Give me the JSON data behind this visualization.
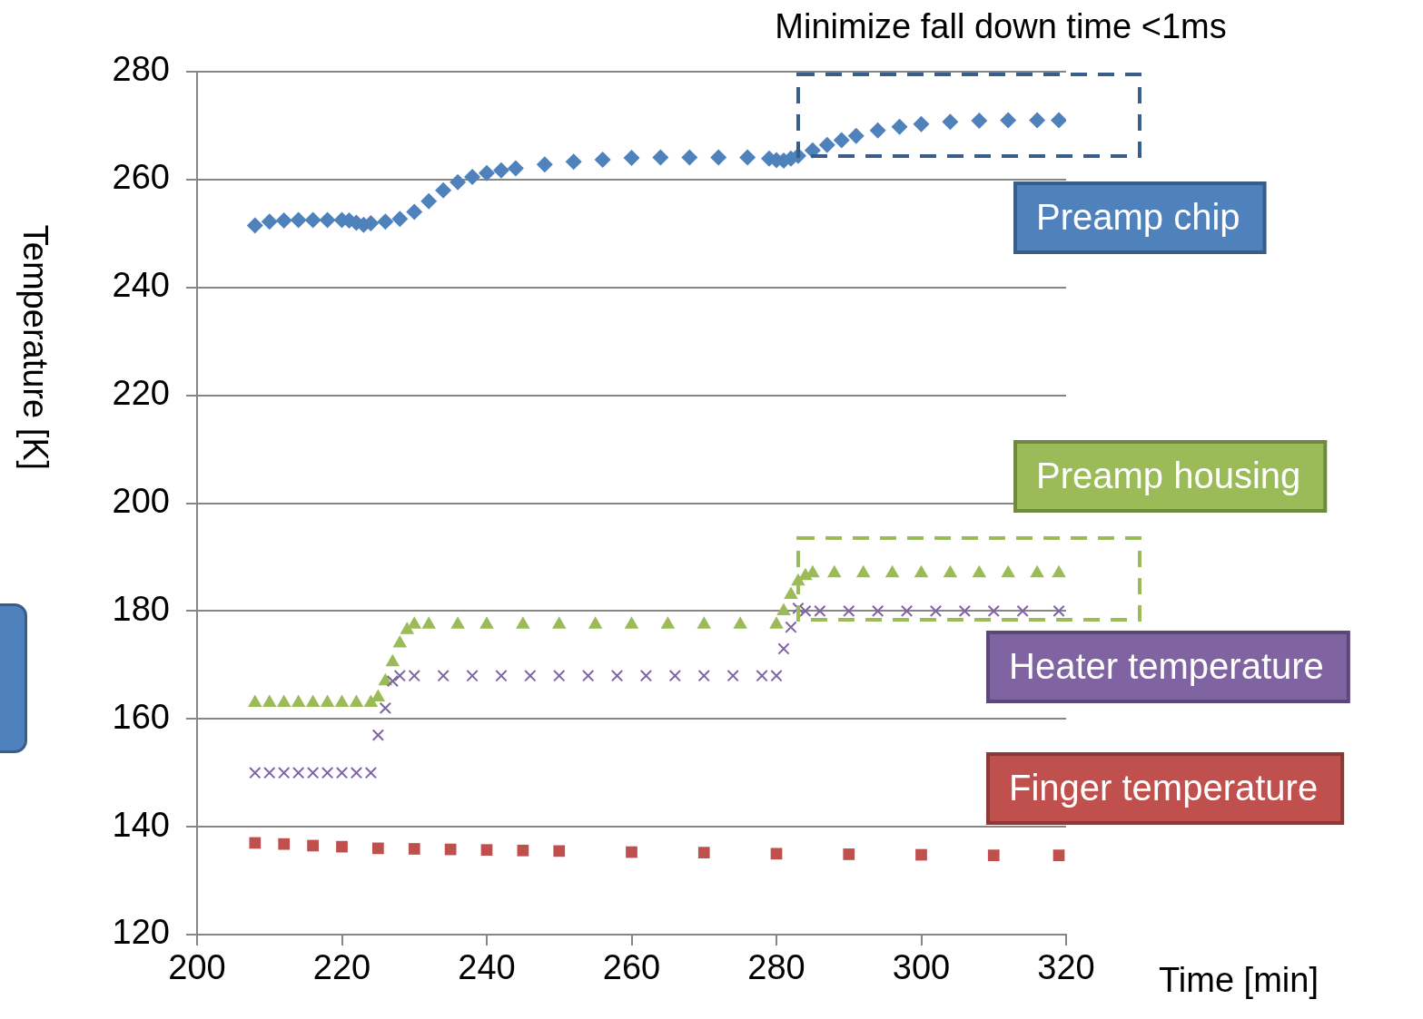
{
  "chart_data": {
    "type": "scatter",
    "xlabel": "Time [min]",
    "ylabel": "Temperature [K]",
    "annotations": [
      "Minimize fall down time <1ms"
    ],
    "xlim": [
      200,
      320
    ],
    "xticks": [
      200,
      220,
      240,
      260,
      280,
      300,
      320
    ],
    "ylim": [
      120,
      280
    ],
    "yticks": [
      120,
      140,
      160,
      180,
      200,
      220,
      240,
      260,
      280
    ],
    "grid": "y",
    "legend": false,
    "series": [
      {
        "name": "Preamp chip",
        "color": "#4f81bd",
        "marker": "diamond",
        "x": [
          208,
          210,
          212,
          214,
          216,
          218,
          220,
          221,
          222,
          223,
          224,
          226,
          228,
          230,
          232,
          234,
          236,
          238,
          240,
          242,
          244,
          248,
          252,
          256,
          260,
          264,
          268,
          272,
          276,
          279,
          280,
          281,
          282,
          283,
          285,
          287,
          289,
          291,
          294,
          297,
          300,
          304,
          308,
          312,
          316,
          319
        ],
        "values": [
          251.5,
          252.2,
          252.4,
          252.5,
          252.5,
          252.5,
          252.5,
          252.4,
          252,
          251.6,
          251.9,
          252.2,
          252.7,
          254,
          256,
          258,
          259.5,
          260.5,
          261.2,
          261.7,
          262.1,
          262.8,
          263.3,
          263.7,
          264,
          264.1,
          264.1,
          264.1,
          264.1,
          263.9,
          263.6,
          263.5,
          263.9,
          264.4,
          265.4,
          266.4,
          267.3,
          268.1,
          269.1,
          269.8,
          270.3,
          270.7,
          270.9,
          271,
          271,
          271
        ]
      },
      {
        "name": "Preamp housing",
        "color": "#9bbb59",
        "marker": "triangle",
        "x": [
          208,
          210,
          212,
          214,
          216,
          218,
          220,
          222,
          224,
          225,
          226,
          227,
          228,
          229,
          230,
          232,
          236,
          240,
          245,
          250,
          255,
          260,
          265,
          270,
          275,
          280,
          281,
          282,
          283,
          284,
          285,
          288,
          292,
          296,
          300,
          304,
          308,
          312,
          316,
          319
        ],
        "values": [
          163,
          163,
          163,
          163,
          163,
          163,
          163,
          163,
          163,
          164,
          167,
          170.5,
          174,
          176.5,
          177.5,
          177.5,
          177.5,
          177.5,
          177.5,
          177.5,
          177.5,
          177.5,
          177.5,
          177.5,
          177.5,
          177.5,
          180,
          183,
          185.5,
          186.5,
          187,
          187,
          187,
          187,
          187,
          187,
          187,
          187,
          187,
          187
        ]
      },
      {
        "name": "Heater temperature",
        "color": "#8064a2",
        "marker": "cross",
        "x": [
          208,
          210,
          212,
          214,
          216,
          218,
          220,
          222,
          224,
          225,
          226,
          227,
          228,
          230,
          234,
          238,
          242,
          246,
          250,
          254,
          258,
          262,
          266,
          270,
          274,
          278,
          280,
          281,
          282,
          283,
          284,
          286,
          290,
          294,
          298,
          302,
          306,
          310,
          314,
          319
        ],
        "values": [
          150,
          150,
          150,
          150,
          150,
          150,
          150,
          150,
          150,
          157,
          162,
          167,
          168,
          168,
          168,
          168,
          168,
          168,
          168,
          168,
          168,
          168,
          168,
          168,
          168,
          168,
          168,
          173,
          177,
          180.5,
          180,
          180,
          180,
          180,
          180,
          180,
          180,
          180,
          180,
          180
        ]
      },
      {
        "name": "Finger temperature",
        "color": "#c0504d",
        "marker": "square",
        "x": [
          208,
          212,
          216,
          220,
          225,
          230,
          235,
          240,
          245,
          250,
          260,
          270,
          280,
          290,
          300,
          310,
          319
        ],
        "values": [
          137,
          136.8,
          136.5,
          136.3,
          136,
          135.9,
          135.8,
          135.7,
          135.6,
          135.5,
          135.3,
          135.2,
          135,
          134.9,
          134.8,
          134.7,
          134.7
        ]
      }
    ]
  }
}
